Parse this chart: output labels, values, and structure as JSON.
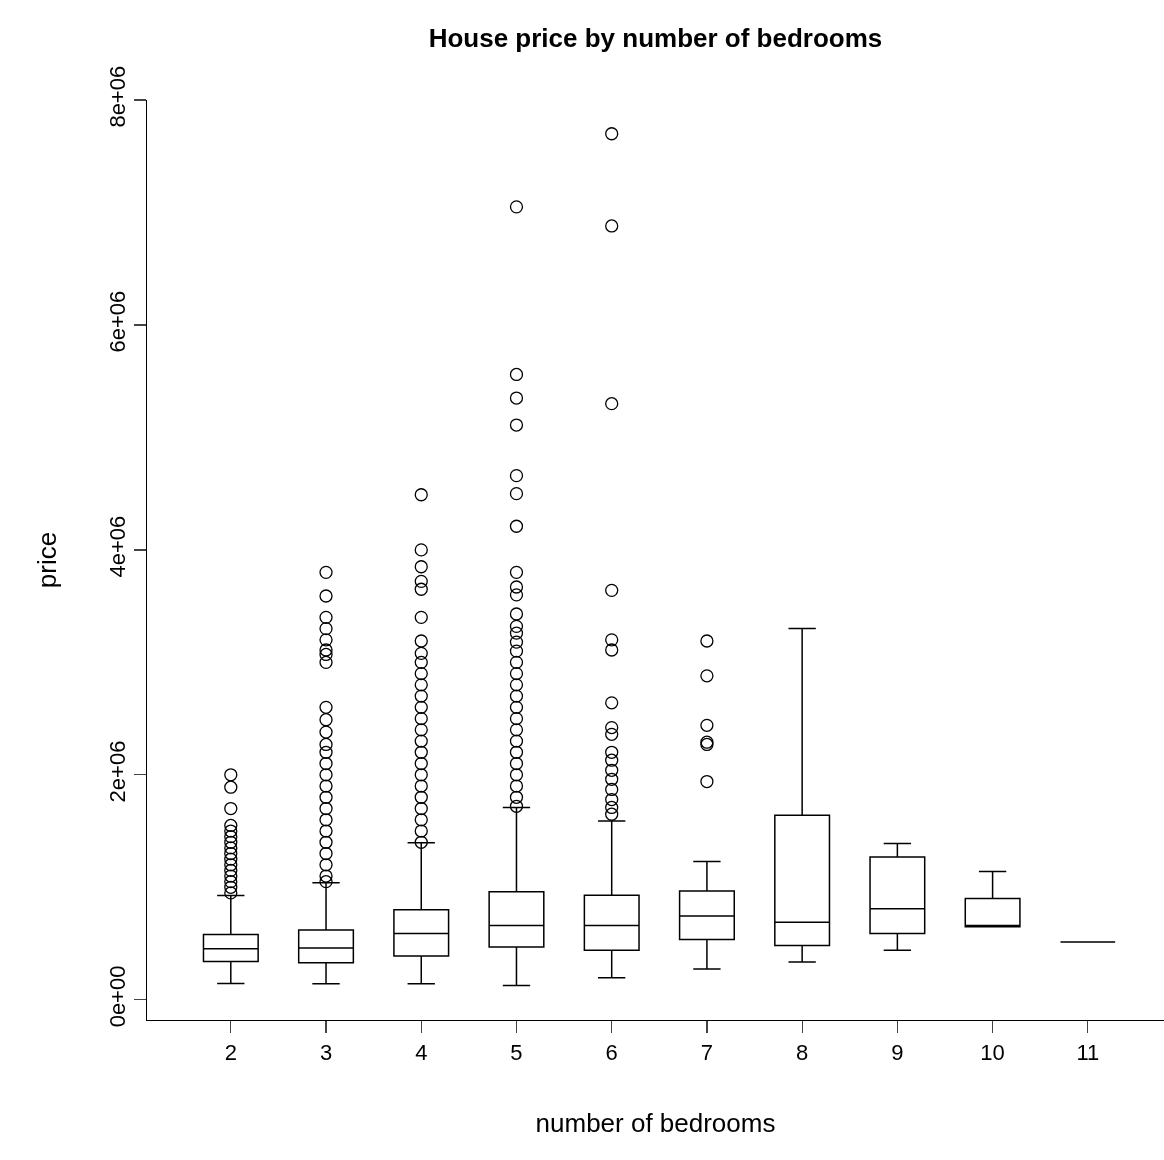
{
  "chart_data": {
    "type": "box",
    "title": "House price by number of bedrooms",
    "xlabel": "number of bedrooms",
    "ylabel": "price",
    "categories": [
      "2",
      "3",
      "4",
      "5",
      "6",
      "7",
      "8",
      "9",
      "10",
      "11"
    ],
    "boxes": [
      {
        "low": 145000,
        "q1": 340000,
        "median": 453000,
        "q3": 580000,
        "high": 927000,
        "outliers": [
          2000000,
          1890000,
          1700000,
          1550000,
          1500000,
          1450000,
          1400000,
          1350000,
          1300000,
          1250000,
          1200000,
          1150000,
          1100000,
          1050000,
          1000000,
          950000
        ]
      },
      {
        "low": 142000,
        "q1": 330000,
        "median": 460000,
        "q3": 620000,
        "high": 1040000,
        "outliers": [
          3800000,
          3590000,
          3400000,
          3300000,
          3200000,
          3110000,
          3070000,
          3000000,
          2600000,
          2490000,
          2380000,
          2270000,
          2200000,
          2100000,
          2000000,
          1900000,
          1800000,
          1700000,
          1600000,
          1500000,
          1400000,
          1300000,
          1200000,
          1100000,
          1050000
        ]
      },
      {
        "low": 142000,
        "q1": 390000,
        "median": 590000,
        "q3": 800000,
        "high": 1395000,
        "outliers": [
          4490000,
          4000000,
          3850000,
          3720000,
          3650000,
          3400000,
          3190000,
          3080000,
          3000000,
          2900000,
          2800000,
          2700000,
          2600000,
          2500000,
          2400000,
          2300000,
          2200000,
          2100000,
          2000000,
          1900000,
          1800000,
          1700000,
          1600000,
          1500000,
          1400000
        ]
      },
      {
        "low": 127000,
        "q1": 470000,
        "median": 660000,
        "q3": 960000,
        "high": 1710000,
        "outliers": [
          7050000,
          5560000,
          5350000,
          5110000,
          4660000,
          4500000,
          4210000,
          3800000,
          3670000,
          3600000,
          3430000,
          3320000,
          3260000,
          3180000,
          3100000,
          3000000,
          2900000,
          2800000,
          2700000,
          2600000,
          2500000,
          2400000,
          2300000,
          2200000,
          2100000,
          2000000,
          1900000,
          1800000,
          1720000
        ]
      },
      {
        "low": 196000,
        "q1": 440000,
        "median": 660000,
        "q3": 930000,
        "high": 1590000,
        "outliers": [
          7700000,
          6880000,
          5300000,
          3640000,
          3200000,
          3110000,
          2640000,
          2420000,
          2360000,
          2200000,
          2130000,
          2040000,
          1960000,
          1870000,
          1780000,
          1710000,
          1650000
        ]
      },
      {
        "low": 273000,
        "q1": 536000,
        "median": 744000,
        "q3": 966000,
        "high": 1230000,
        "outliers": [
          3190000,
          2880000,
          2440000,
          2290000,
          2270000,
          1940000
        ]
      },
      {
        "low": 335000,
        "q1": 483000,
        "median": 690000,
        "q3": 1640000,
        "high": 3300000
      },
      {
        "low": 440000,
        "q1": 590000,
        "median": 810000,
        "q3": 1270000,
        "high": 1390000
      },
      {
        "low": 650000,
        "q1": 650000,
        "median": 660000,
        "q3": 900000,
        "high": 1140000
      },
      {
        "low": 513000,
        "q1": 513000,
        "median": 513000,
        "q3": 513000,
        "high": 513000
      }
    ],
    "ylim": [
      -180000,
      8000000
    ],
    "yticks": [
      {
        "value": 0,
        "label": "0e+00"
      },
      {
        "value": 2000000,
        "label": "2e+06"
      },
      {
        "value": 4000000,
        "label": "4e+06"
      },
      {
        "value": 6000000,
        "label": "6e+06"
      },
      {
        "value": 8000000,
        "label": "8e+06"
      }
    ],
    "marker": "circle",
    "grid": false
  }
}
